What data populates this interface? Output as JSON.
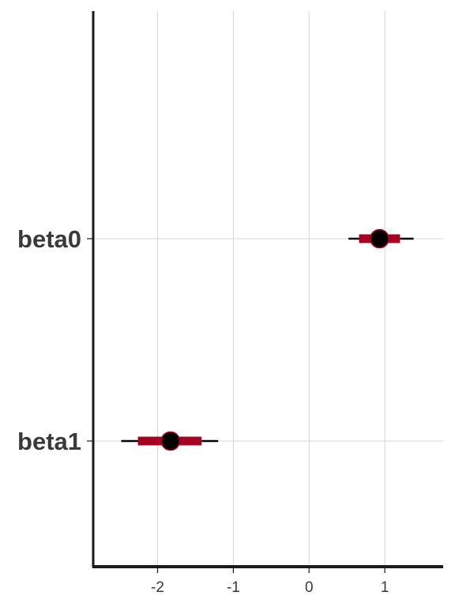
{
  "chart_data": {
    "type": "interval",
    "title": "",
    "xlabel": "",
    "ylabel": "",
    "xlim": [
      -2.85,
      1.77
    ],
    "x_ticks": [
      -2,
      -1,
      0,
      1
    ],
    "x_tick_labels": [
      "-2",
      "-1",
      "0",
      "1"
    ],
    "grid": true,
    "legend": "none",
    "parameters": [
      {
        "label": "beta0",
        "point": 0.93,
        "inner": [
          0.66,
          1.2
        ],
        "outer": [
          0.52,
          1.38
        ]
      },
      {
        "label": "beta1",
        "point": -1.83,
        "inner": [
          -2.26,
          -1.42
        ],
        "outer": [
          -2.48,
          -1.2
        ]
      }
    ],
    "colors": {
      "inner_interval": "#a50021",
      "outer_interval": "#000000",
      "point_fill": "#000000",
      "point_stroke": "#a50021",
      "grid": "#cccccc",
      "axis": "#1a1a1a"
    }
  }
}
